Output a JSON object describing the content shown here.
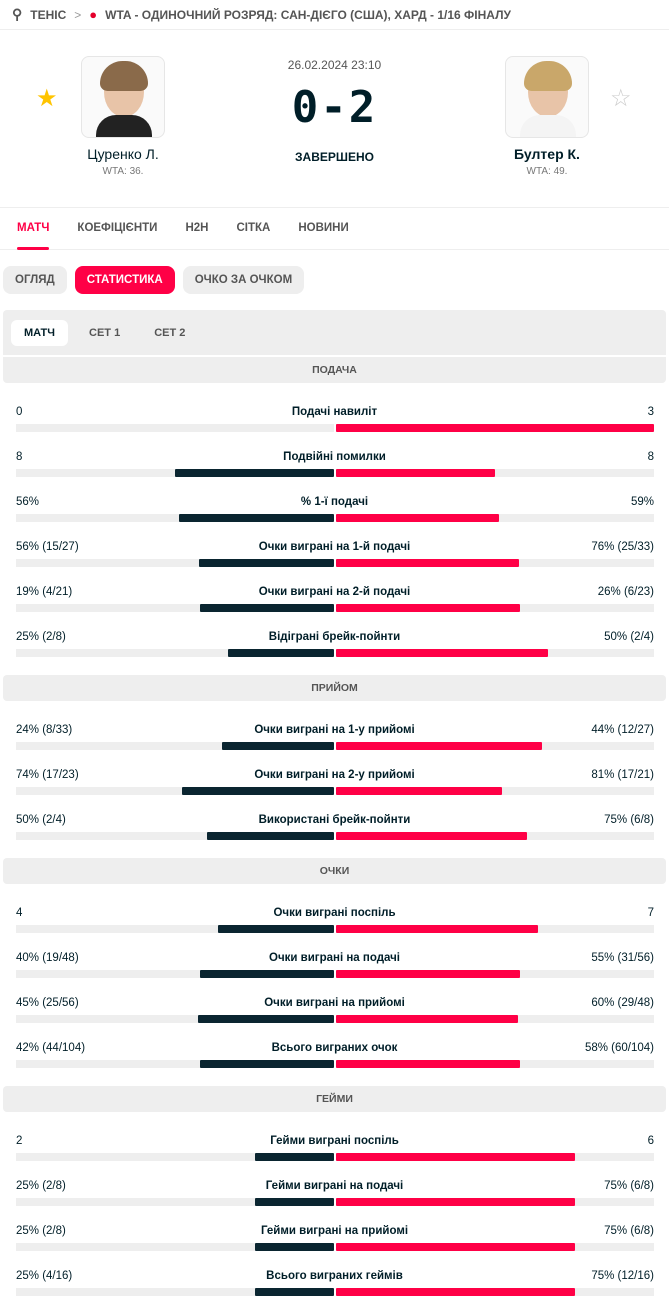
{
  "breadcrumb": {
    "sport": "ТЕНІС",
    "tournament": "WTA - ОДИНОЧНИЙ РОЗРЯД: САН-ДІЄГО (США), ХАРД - 1/16 ФІНАЛУ"
  },
  "match": {
    "date": "26.02.2024 23:10",
    "score": "0-2",
    "status": "ЗАВЕРШЕНО",
    "home": {
      "name": "Цуренко Л.",
      "rank": "WTA: 36.",
      "favorite": true
    },
    "away": {
      "name": "Бултер К.",
      "rank": "WTA: 49.",
      "favorite": false
    }
  },
  "tabs": [
    "МАТЧ",
    "КОЕФІЦІЄНТИ",
    "H2H",
    "СІТКА",
    "НОВИНИ"
  ],
  "pills": [
    "ОГЛЯД",
    "СТАТИСТИКА",
    "ОЧКО ЗА ОЧКОМ"
  ],
  "subtabs": [
    "МАТЧ",
    "СЕТ 1",
    "СЕТ 2"
  ],
  "colors": {
    "accent": "#ff0046",
    "dark": "#0a2530"
  },
  "sections": [
    {
      "title": "ПОДАЧА",
      "rows": [
        {
          "label": "Подачі навиліт",
          "left": "0",
          "right": "3",
          "lv": 0,
          "rv": 3
        },
        {
          "label": "Подвійні помилки",
          "left": "8",
          "right": "8",
          "lv": 8,
          "rv": 8
        },
        {
          "label": "% 1-ї подачі",
          "left": "56%",
          "right": "59%",
          "lv": 56,
          "rv": 59
        },
        {
          "label": "Очки виграні на 1-й подачі",
          "left": "56% (15/27)",
          "right": "76% (25/33)",
          "lv": 56,
          "rv": 76
        },
        {
          "label": "Очки виграні на 2-й подачі",
          "left": "19% (4/21)",
          "right": "26% (6/23)",
          "lv": 19,
          "rv": 26
        },
        {
          "label": "Відіграні брейк-пойнти",
          "left": "25% (2/8)",
          "right": "50% (2/4)",
          "lv": 25,
          "rv": 50
        }
      ]
    },
    {
      "title": "ПРИЙОМ",
      "rows": [
        {
          "label": "Очки виграні на 1-у прийомі",
          "left": "24% (8/33)",
          "right": "44% (12/27)",
          "lv": 24,
          "rv": 44
        },
        {
          "label": "Очки виграні на 2-у прийомі",
          "left": "74% (17/23)",
          "right": "81% (17/21)",
          "lv": 74,
          "rv": 81
        },
        {
          "label": "Використані брейк-пойнти",
          "left": "50% (2/4)",
          "right": "75% (6/8)",
          "lv": 50,
          "rv": 75
        }
      ]
    },
    {
      "title": "ОЧКИ",
      "rows": [
        {
          "label": "Очки виграні поспіль",
          "left": "4",
          "right": "7",
          "lv": 4,
          "rv": 7
        },
        {
          "label": "Очки виграні на подачі",
          "left": "40% (19/48)",
          "right": "55% (31/56)",
          "lv": 40,
          "rv": 55
        },
        {
          "label": "Очки виграні на прийомі",
          "left": "45% (25/56)",
          "right": "60% (29/48)",
          "lv": 45,
          "rv": 60
        },
        {
          "label": "Всього виграних очок",
          "left": "42% (44/104)",
          "right": "58% (60/104)",
          "lv": 42,
          "rv": 58
        }
      ]
    },
    {
      "title": "ГЕЙМИ",
      "rows": [
        {
          "label": "Гейми виграні поспіль",
          "left": "2",
          "right": "6",
          "lv": 2,
          "rv": 6
        },
        {
          "label": "Гейми виграні на подачі",
          "left": "25% (2/8)",
          "right": "75% (6/8)",
          "lv": 25,
          "rv": 75
        },
        {
          "label": "Гейми виграні на прийомі",
          "left": "25% (2/8)",
          "right": "75% (6/8)",
          "lv": 25,
          "rv": 75
        },
        {
          "label": "Всього виграних геймів",
          "left": "25% (4/16)",
          "right": "75% (12/16)",
          "lv": 25,
          "rv": 75
        }
      ]
    }
  ]
}
